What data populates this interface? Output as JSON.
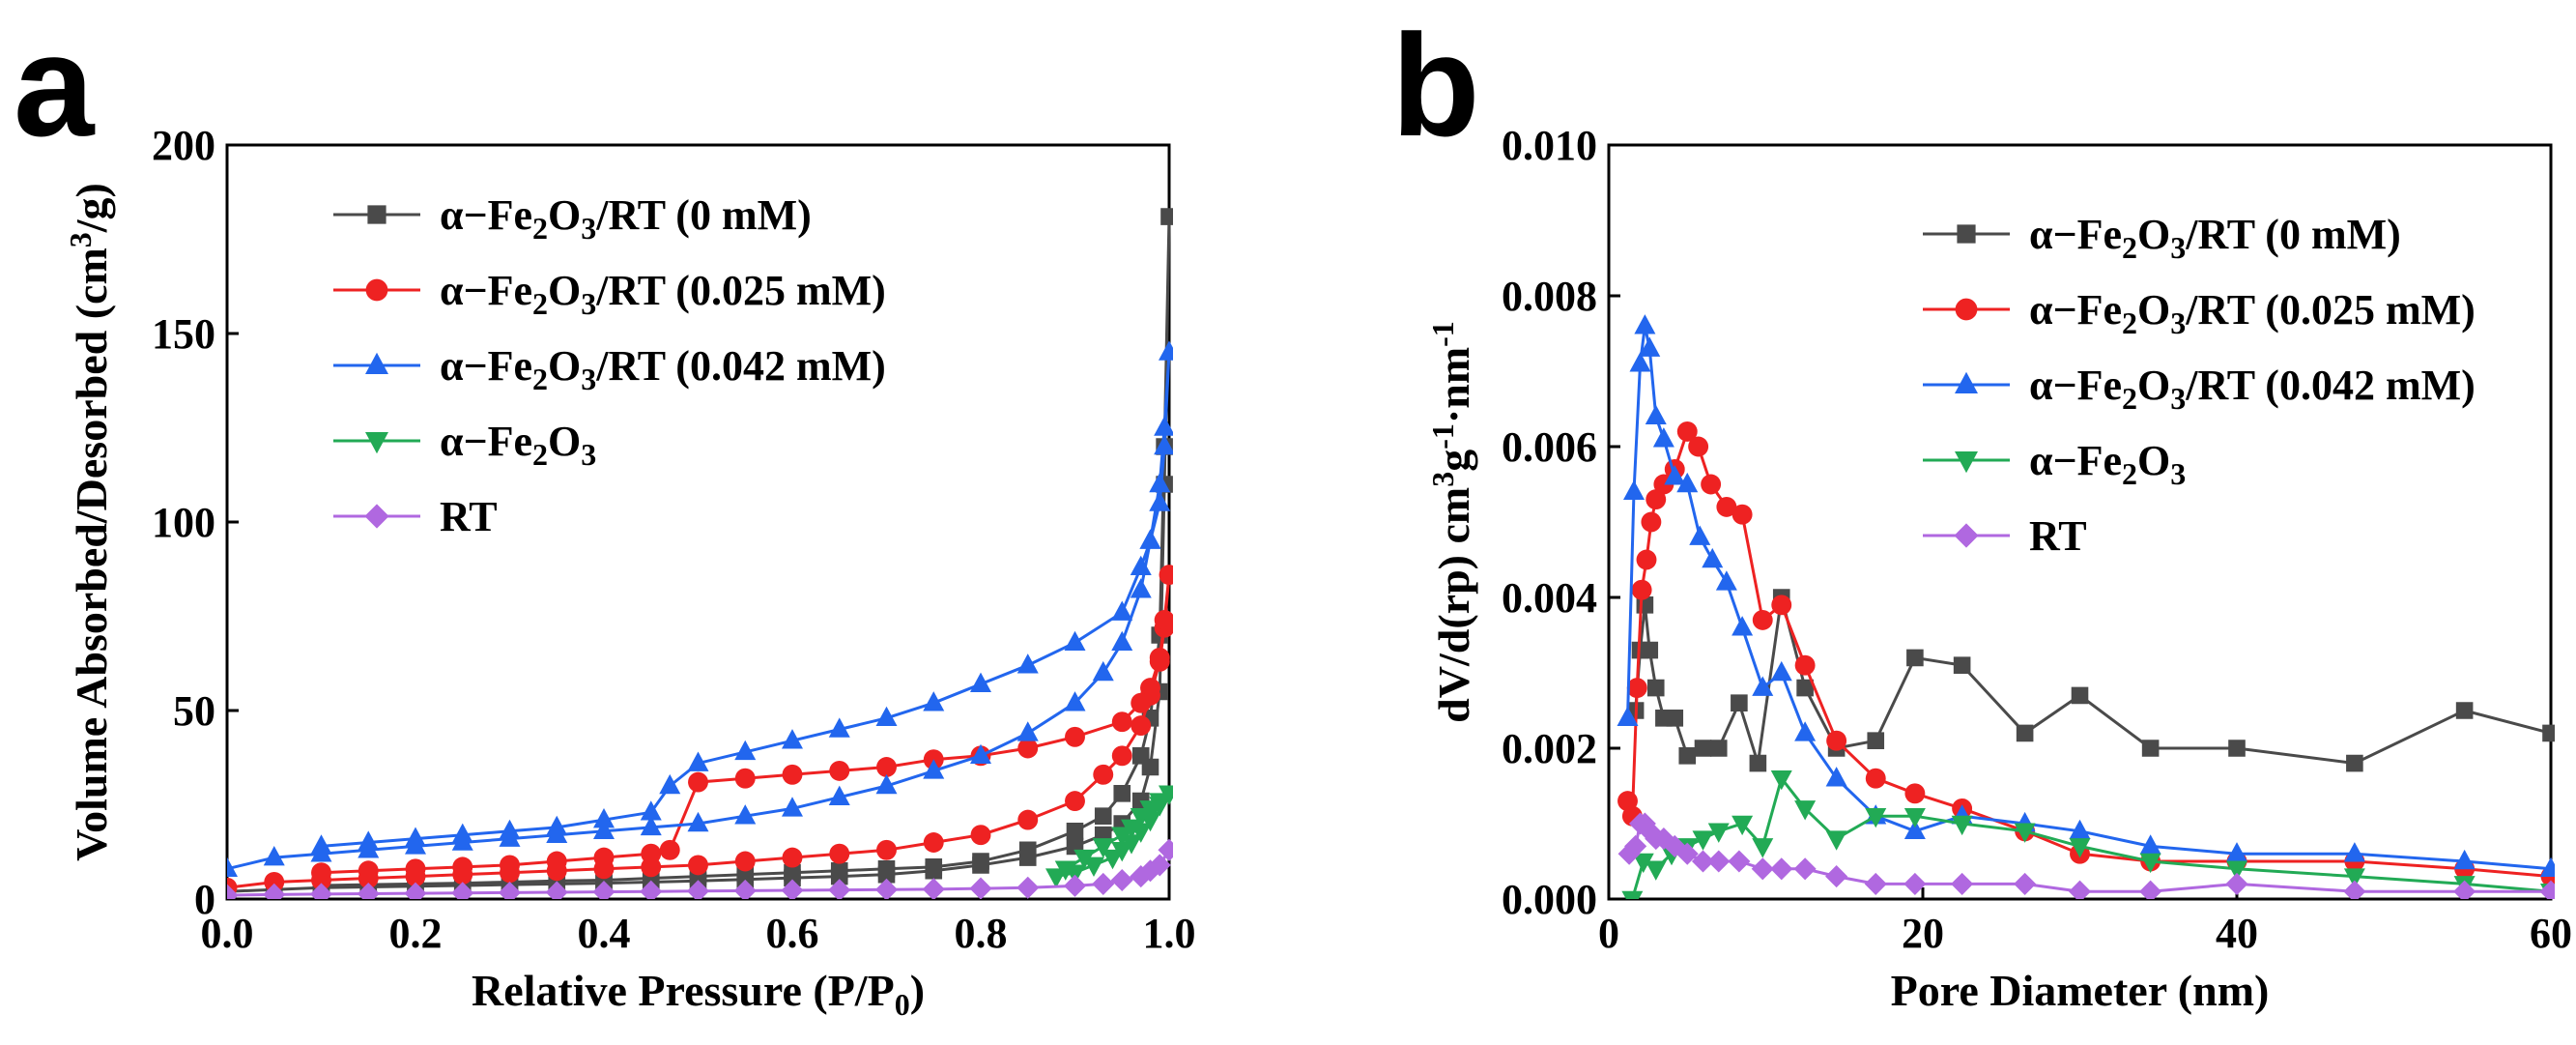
{
  "chart_data": [
    {
      "panel": "a",
      "type": "line",
      "xlabel": "Relative Pressure (P/P0)",
      "ylabel": "Volume Absorbed/Desorbed (cm3/g)",
      "xlim": [
        0.0,
        1.0
      ],
      "ylim": [
        0,
        200
      ],
      "xticks": [
        "0.0",
        "0.2",
        "0.4",
        "0.6",
        "0.8",
        "1.0"
      ],
      "yticks": [
        "0",
        "50",
        "100",
        "150",
        "200"
      ],
      "legend_position": "top-left",
      "series": [
        {
          "name": "α−Fe2O3/RT (0 mM)",
          "color": "#4a4a4a",
          "marker": "square",
          "x": [
            0.0,
            0.05,
            0.1,
            0.15,
            0.2,
            0.25,
            0.3,
            0.35,
            0.4,
            0.45,
            0.5,
            0.55,
            0.6,
            0.65,
            0.7,
            0.75,
            0.8,
            0.85,
            0.9,
            0.93,
            0.95,
            0.97,
            0.98,
            0.99,
            0.995,
            1.0,
            0.995,
            0.99,
            0.98,
            0.97,
            0.95,
            0.93,
            0.9,
            0.85,
            0.8,
            0.75,
            0.7,
            0.65,
            0.6,
            0.55,
            0.5,
            0.45,
            0.4,
            0.35,
            0.3,
            0.25,
            0.2,
            0.15,
            0.1
          ],
          "y": [
            2,
            2.5,
            3,
            3.2,
            3.4,
            3.6,
            3.8,
            4,
            4.2,
            4.5,
            4.8,
            5.2,
            5.6,
            6,
            6.5,
            7.5,
            9,
            11,
            14,
            17,
            20,
            26,
            35,
            55,
            110,
            181,
            120,
            70,
            48,
            38,
            28,
            22,
            18,
            13,
            10,
            8.5,
            8,
            7.5,
            7,
            6.5,
            6,
            5.5,
            5,
            4.8,
            4.5,
            4.2,
            4,
            3.8,
            3.6
          ]
        },
        {
          "name": "α−Fe2O3/RT (0.025 mM)",
          "color": "#ee2222",
          "marker": "circle",
          "x": [
            0.0,
            0.05,
            0.1,
            0.15,
            0.2,
            0.25,
            0.3,
            0.35,
            0.4,
            0.45,
            0.5,
            0.55,
            0.6,
            0.65,
            0.7,
            0.75,
            0.8,
            0.85,
            0.9,
            0.93,
            0.95,
            0.97,
            0.98,
            0.99,
            0.995,
            1.0,
            0.995,
            0.99,
            0.98,
            0.97,
            0.95,
            0.9,
            0.85,
            0.8,
            0.75,
            0.7,
            0.65,
            0.6,
            0.55,
            0.5,
            0.47,
            0.45,
            0.4,
            0.35,
            0.3,
            0.25,
            0.2,
            0.15,
            0.1
          ],
          "y": [
            3,
            4.5,
            5,
            5.5,
            6,
            6.5,
            7,
            7.5,
            8,
            8.5,
            9,
            10,
            11,
            12,
            13,
            15,
            17,
            21,
            26,
            33,
            38,
            46,
            54,
            63,
            72,
            86,
            74,
            64,
            56,
            52,
            47,
            43,
            40,
            38,
            37,
            35,
            34,
            33,
            32,
            31,
            13,
            12,
            11,
            10,
            9,
            8.5,
            8,
            7.5,
            7
          ]
        },
        {
          "name": "α−Fe2O3/RT (0.042 mM)",
          "color": "#2266ee",
          "marker": "triangle-up",
          "x": [
            0.0,
            0.05,
            0.1,
            0.15,
            0.2,
            0.25,
            0.3,
            0.35,
            0.4,
            0.45,
            0.5,
            0.55,
            0.6,
            0.65,
            0.7,
            0.75,
            0.8,
            0.85,
            0.9,
            0.93,
            0.95,
            0.97,
            0.98,
            0.99,
            0.995,
            1.0,
            0.995,
            0.99,
            0.98,
            0.97,
            0.95,
            0.9,
            0.85,
            0.8,
            0.75,
            0.7,
            0.65,
            0.6,
            0.55,
            0.5,
            0.47,
            0.45,
            0.4,
            0.35,
            0.3,
            0.25,
            0.2,
            0.15,
            0.1
          ],
          "y": [
            8,
            11,
            12,
            13,
            14,
            15,
            16,
            17,
            18,
            19,
            20,
            22,
            24,
            27,
            30,
            34,
            38,
            44,
            52,
            60,
            68,
            82,
            95,
            110,
            125,
            145,
            120,
            105,
            95,
            88,
            76,
            68,
            62,
            57,
            52,
            48,
            45,
            42,
            39,
            36,
            30,
            23,
            21,
            19,
            18,
            17,
            16,
            15,
            14
          ]
        },
        {
          "name": "α−Fe2O3",
          "color": "#22aa55",
          "marker": "triangle-down",
          "x": [
            0.88,
            0.9,
            0.92,
            0.94,
            0.95,
            0.96,
            0.97,
            0.98,
            0.99,
            1.0,
            0.99,
            0.98,
            0.97,
            0.96,
            0.95,
            0.93,
            0.91,
            0.89
          ],
          "y": [
            6,
            7,
            9,
            11,
            13,
            15,
            18,
            21,
            25,
            28,
            26,
            24,
            22,
            19,
            17,
            14,
            11,
            8
          ]
        },
        {
          "name": "RT",
          "color": "#b068e0",
          "marker": "diamond",
          "x": [
            0.0,
            0.05,
            0.1,
            0.15,
            0.2,
            0.25,
            0.3,
            0.35,
            0.4,
            0.45,
            0.5,
            0.55,
            0.6,
            0.65,
            0.7,
            0.75,
            0.8,
            0.85,
            0.9,
            0.93,
            0.95,
            0.97,
            0.98,
            0.99,
            1.0
          ],
          "y": [
            1,
            1.2,
            1.3,
            1.4,
            1.5,
            1.6,
            1.7,
            1.8,
            1.9,
            2,
            2.1,
            2.2,
            2.3,
            2.4,
            2.5,
            2.6,
            2.8,
            3,
            3.5,
            4,
            5,
            6,
            7.5,
            9,
            13
          ]
        }
      ]
    },
    {
      "panel": "b",
      "type": "line",
      "xlabel": "Pore Diameter (nm)",
      "ylabel": "dV/d(rp) cm3g-1·nm-1",
      "xlim": [
        0,
        60
      ],
      "ylim": [
        0.0,
        0.01
      ],
      "xticks": [
        "0",
        "20",
        "40",
        "60"
      ],
      "yticks": [
        "0.000",
        "0.002",
        "0.004",
        "0.006",
        "0.008",
        "0.010"
      ],
      "legend_position": "top-right",
      "series": [
        {
          "name": "α−Fe2O3/RT (0 mM)",
          "color": "#4a4a4a",
          "marker": "square",
          "x": [
            1.7,
            2.0,
            2.3,
            2.6,
            3.0,
            3.5,
            4.2,
            5.0,
            6.0,
            7.0,
            8.3,
            9.5,
            11.0,
            12.5,
            14.5,
            17.0,
            19.5,
            22.5,
            26.5,
            30.0,
            34.5,
            40.0,
            47.5,
            54.5,
            60.0
          ],
          "y": [
            0.0025,
            0.0033,
            0.0039,
            0.0033,
            0.0028,
            0.0024,
            0.0024,
            0.0019,
            0.002,
            0.002,
            0.0026,
            0.0018,
            0.004,
            0.0028,
            0.002,
            0.0021,
            0.0032,
            0.0031,
            0.0022,
            0.0027,
            0.002,
            0.002,
            0.0018,
            0.0025,
            0.0022
          ]
        },
        {
          "name": "α−Fe2O3/RT (0.025 mM)",
          "color": "#ee2222",
          "marker": "circle",
          "x": [
            1.2,
            1.5,
            1.8,
            2.1,
            2.4,
            2.7,
            3.0,
            3.5,
            4.2,
            5.0,
            5.7,
            6.5,
            7.5,
            8.5,
            9.8,
            11.0,
            12.5,
            14.5,
            17.0,
            19.5,
            22.5,
            26.5,
            30.0,
            34.5,
            40.0,
            47.5,
            54.5,
            60.0
          ],
          "y": [
            0.0013,
            0.0011,
            0.0028,
            0.0041,
            0.0045,
            0.005,
            0.0053,
            0.0055,
            0.0057,
            0.0062,
            0.006,
            0.0055,
            0.0052,
            0.0051,
            0.0037,
            0.0039,
            0.0031,
            0.0021,
            0.0016,
            0.0014,
            0.0012,
            0.0009,
            0.0006,
            0.0005,
            0.0005,
            0.0005,
            0.0004,
            0.0003
          ]
        },
        {
          "name": "α−Fe2O3/RT (0.042 mM)",
          "color": "#2266ee",
          "marker": "triangle-up",
          "x": [
            1.2,
            1.6,
            2.0,
            2.3,
            2.6,
            3.0,
            3.5,
            4.2,
            5.0,
            5.8,
            6.6,
            7.5,
            8.5,
            9.8,
            11.0,
            12.5,
            14.5,
            17.0,
            19.5,
            22.5,
            26.5,
            30.0,
            34.5,
            40.0,
            47.5,
            54.5,
            60.0
          ],
          "y": [
            0.0024,
            0.0054,
            0.0071,
            0.0076,
            0.0073,
            0.0064,
            0.0061,
            0.0056,
            0.0055,
            0.0048,
            0.0045,
            0.0042,
            0.0036,
            0.0028,
            0.003,
            0.0022,
            0.0016,
            0.0011,
            0.0009,
            0.0011,
            0.001,
            0.0009,
            0.0007,
            0.0006,
            0.0006,
            0.0005,
            0.0004
          ]
        },
        {
          "name": "α−Fe2O3",
          "color": "#22aa55",
          "marker": "triangle-down",
          "x": [
            1.5,
            2.2,
            3.0,
            4.0,
            5.0,
            6.0,
            7.0,
            8.5,
            9.8,
            11.0,
            12.5,
            14.5,
            17.0,
            19.5,
            22.5,
            26.5,
            30.0,
            34.5,
            40.0,
            47.5,
            54.5,
            60.0
          ],
          "y": [
            0.0,
            0.0005,
            0.0004,
            0.0006,
            0.0007,
            0.0008,
            0.0009,
            0.001,
            0.0007,
            0.0016,
            0.0012,
            0.0008,
            0.0011,
            0.0011,
            0.001,
            0.0009,
            0.0007,
            0.0005,
            0.0004,
            0.0003,
            0.0002,
            0.0001
          ]
        },
        {
          "name": "RT",
          "color": "#b068e0",
          "marker": "diamond",
          "x": [
            1.3,
            1.7,
            2.0,
            2.3,
            2.6,
            3.0,
            3.5,
            4.2,
            5.0,
            6.0,
            7.0,
            8.3,
            9.8,
            11.0,
            12.5,
            14.5,
            17.0,
            19.5,
            22.5,
            26.5,
            30.0,
            34.5,
            40.0,
            47.5,
            54.5,
            60.0
          ],
          "y": [
            0.0006,
            0.0007,
            0.001,
            0.001,
            0.0009,
            0.0008,
            0.0008,
            0.0007,
            0.0006,
            0.0005,
            0.0005,
            0.0005,
            0.0004,
            0.0004,
            0.0004,
            0.0003,
            0.0002,
            0.0002,
            0.0002,
            0.0002,
            0.0001,
            0.0001,
            0.0002,
            0.0001,
            0.0001,
            0.0001
          ]
        }
      ]
    }
  ]
}
